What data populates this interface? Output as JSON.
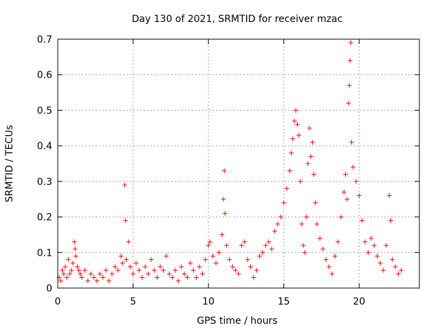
{
  "chart_data": {
    "type": "scatter",
    "title": "Day 130 of 2021, SRMTID for receiver mzac",
    "xlabel": "GPS time / hours",
    "ylabel": "SRMTID / TECUs",
    "xlim": [
      0,
      24
    ],
    "ylim": [
      0,
      0.7
    ],
    "xticks": [
      0,
      5,
      10,
      15,
      20
    ],
    "xtick_labels": [
      "0",
      "5",
      "10",
      "15",
      "20"
    ],
    "yticks": [
      0,
      0.1,
      0.2,
      0.3,
      0.4,
      0.5,
      0.6,
      0.7
    ],
    "ytick_labels": [
      "0",
      "0.1",
      "0.2",
      "0.3",
      "0.4",
      "0.5",
      "0.6",
      "0.7"
    ],
    "grid": true,
    "marker": "+",
    "color": "#ff0000",
    "series": [
      {
        "name": "SRMTID",
        "points": [
          [
            0.1,
            0.03
          ],
          [
            0.2,
            0.02
          ],
          [
            0.3,
            0.05
          ],
          [
            0.4,
            0.04
          ],
          [
            0.5,
            0.06
          ],
          [
            0.6,
            0.03
          ],
          [
            0.7,
            0.08
          ],
          [
            0.8,
            0.04
          ],
          [
            0.9,
            0.05
          ],
          [
            1.0,
            0.07
          ],
          [
            1.1,
            0.13
          ],
          [
            1.15,
            0.11
          ],
          [
            1.2,
            0.09
          ],
          [
            1.3,
            0.06
          ],
          [
            1.4,
            0.05
          ],
          [
            1.5,
            0.04
          ],
          [
            1.6,
            0.03
          ],
          [
            1.8,
            0.05
          ],
          [
            2.0,
            0.02
          ],
          [
            2.2,
            0.04
          ],
          [
            2.4,
            0.03
          ],
          [
            2.6,
            0.02
          ],
          [
            2.8,
            0.04
          ],
          [
            3.0,
            0.03
          ],
          [
            3.2,
            0.05
          ],
          [
            3.4,
            0.02
          ],
          [
            3.6,
            0.04
          ],
          [
            3.8,
            0.06
          ],
          [
            4.0,
            0.05
          ],
          [
            4.2,
            0.09
          ],
          [
            4.3,
            0.07
          ],
          [
            4.45,
            0.29
          ],
          [
            4.5,
            0.19
          ],
          [
            4.55,
            0.08
          ],
          [
            4.7,
            0.13
          ],
          [
            4.8,
            0.06
          ],
          [
            5.0,
            0.04
          ],
          [
            5.2,
            0.07
          ],
          [
            5.4,
            0.05
          ],
          [
            5.6,
            0.03
          ],
          [
            5.8,
            0.06
          ],
          [
            6.0,
            0.04
          ],
          [
            6.2,
            0.08
          ],
          [
            6.4,
            0.05
          ],
          [
            6.6,
            0.03
          ],
          [
            6.8,
            0.06
          ],
          [
            7.0,
            0.05
          ],
          [
            7.2,
            0.09
          ],
          [
            7.4,
            0.04
          ],
          [
            7.6,
            0.03
          ],
          [
            7.8,
            0.05
          ],
          [
            8.0,
            0.02
          ],
          [
            8.2,
            0.06
          ],
          [
            8.4,
            0.04
          ],
          [
            8.6,
            0.03
          ],
          [
            8.8,
            0.07
          ],
          [
            9.0,
            0.05
          ],
          [
            9.2,
            0.03
          ],
          [
            9.4,
            0.06
          ],
          [
            9.6,
            0.04
          ],
          [
            9.8,
            0.08
          ],
          [
            10.0,
            0.12
          ],
          [
            10.1,
            0.13
          ],
          [
            10.3,
            0.09
          ],
          [
            10.5,
            0.07
          ],
          [
            10.7,
            0.1
          ],
          [
            10.9,
            0.15
          ],
          [
            11.0,
            0.25
          ],
          [
            11.05,
            0.33
          ],
          [
            11.1,
            0.21
          ],
          [
            11.2,
            0.12
          ],
          [
            11.4,
            0.08
          ],
          [
            11.6,
            0.06
          ],
          [
            11.8,
            0.05
          ],
          [
            12.0,
            0.04
          ],
          [
            12.2,
            0.12
          ],
          [
            12.4,
            0.13
          ],
          [
            12.6,
            0.08
          ],
          [
            12.8,
            0.06
          ],
          [
            13.0,
            0.03
          ],
          [
            13.2,
            0.05
          ],
          [
            13.4,
            0.09
          ],
          [
            13.6,
            0.1
          ],
          [
            13.8,
            0.12
          ],
          [
            14.0,
            0.13
          ],
          [
            14.2,
            0.11
          ],
          [
            14.4,
            0.16
          ],
          [
            14.6,
            0.18
          ],
          [
            14.8,
            0.2
          ],
          [
            15.0,
            0.24
          ],
          [
            15.2,
            0.28
          ],
          [
            15.4,
            0.33
          ],
          [
            15.5,
            0.38
          ],
          [
            15.6,
            0.42
          ],
          [
            15.7,
            0.47
          ],
          [
            15.8,
            0.5
          ],
          [
            15.9,
            0.46
          ],
          [
            16.0,
            0.43
          ],
          [
            16.1,
            0.3
          ],
          [
            16.2,
            0.18
          ],
          [
            16.3,
            0.12
          ],
          [
            16.4,
            0.1
          ],
          [
            16.5,
            0.2
          ],
          [
            16.6,
            0.35
          ],
          [
            16.7,
            0.45
          ],
          [
            16.8,
            0.37
          ],
          [
            16.9,
            0.41
          ],
          [
            17.0,
            0.32
          ],
          [
            17.1,
            0.24
          ],
          [
            17.2,
            0.18
          ],
          [
            17.4,
            0.14
          ],
          [
            17.6,
            0.11
          ],
          [
            17.8,
            0.08
          ],
          [
            18.0,
            0.06
          ],
          [
            18.2,
            0.04
          ],
          [
            18.4,
            0.09
          ],
          [
            18.6,
            0.13
          ],
          [
            18.8,
            0.2
          ],
          [
            19.0,
            0.27
          ],
          [
            19.1,
            0.32
          ],
          [
            19.2,
            0.25
          ],
          [
            19.3,
            0.52
          ],
          [
            19.35,
            0.57
          ],
          [
            19.4,
            0.64
          ],
          [
            19.45,
            0.69
          ],
          [
            19.5,
            0.41
          ],
          [
            19.6,
            0.34
          ],
          [
            19.8,
            0.3
          ],
          [
            20.0,
            0.26
          ],
          [
            20.2,
            0.19
          ],
          [
            20.4,
            0.13
          ],
          [
            20.6,
            0.1
          ],
          [
            20.8,
            0.14
          ],
          [
            21.0,
            0.12
          ],
          [
            21.2,
            0.09
          ],
          [
            21.4,
            0.07
          ],
          [
            21.6,
            0.05
          ],
          [
            21.8,
            0.12
          ],
          [
            22.0,
            0.26
          ],
          [
            22.1,
            0.19
          ],
          [
            22.2,
            0.08
          ],
          [
            22.4,
            0.06
          ],
          [
            22.6,
            0.04
          ],
          [
            22.8,
            0.05
          ]
        ]
      }
    ]
  }
}
